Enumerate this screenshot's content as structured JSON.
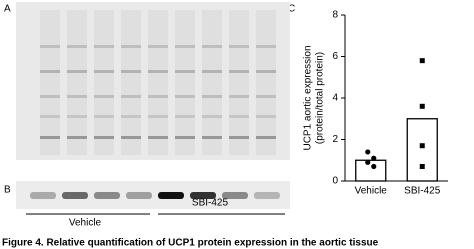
{
  "panels": {
    "a": "A",
    "b": "B",
    "c": "C"
  },
  "gel_groups": [
    "Vehicle",
    "SBI-425"
  ],
  "caption": "Figure 4. Relative quantification of UCP1 protein expression in the aortic tissue",
  "chart_data": {
    "type": "bar",
    "ylabel": [
      "UCP1 aortic expression",
      "(protein/total protein)"
    ],
    "categories": [
      "Vehicle",
      "SBI-425"
    ],
    "values": [
      1.0,
      3.0
    ],
    "points": [
      [
        1.4,
        1.1,
        0.9,
        0.7
      ],
      [
        5.8,
        3.6,
        1.7,
        0.7
      ]
    ],
    "color": "#000000",
    "ylim": [
      0,
      8
    ],
    "yticks": [
      0,
      2,
      4,
      6,
      8
    ]
  }
}
